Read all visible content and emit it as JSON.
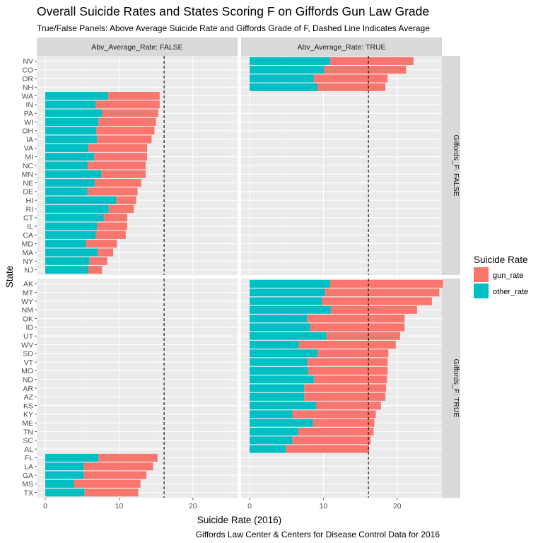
{
  "title": "Overall Suicide Rates and States Scoring F on Giffords Gun Law Grade",
  "subtitle": "True/False Panels: Above Average Suicide Rate and Giffords Grade of F, Dashed Line Indicates Average",
  "caption": "Giffords Law Center & Centers for Disease Control Data for 2016",
  "chart_data": {
    "type": "bar",
    "orientation": "horizontal",
    "stacked": true,
    "xlabel": "Suicide Rate (2016)",
    "ylabel": "State",
    "xlim": [
      0,
      26
    ],
    "xticks": [
      0,
      10,
      20
    ],
    "grid": true,
    "average_line": 16.1,
    "colors": {
      "gun_rate": "#F8766D",
      "other_rate": "#00BFC4"
    },
    "legend": {
      "title": "Suicide Rate",
      "position": "right",
      "entries": [
        {
          "key": "gun_rate",
          "label": "gun_rate"
        },
        {
          "key": "other_rate",
          "label": "other_rate"
        }
      ]
    },
    "col_facet": {
      "variable": "Abv_Average_Rate",
      "strips": [
        "Abv_Average_Rate: FALSE",
        "Abv_Average_Rate: TRUE"
      ]
    },
    "row_facet": {
      "variable": "Giffords_F",
      "strips": [
        "Giffords_F: FALSE",
        "Giffords_F: TRUE"
      ]
    },
    "rows": [
      {
        "states": [
          "NV",
          "CO",
          "OR",
          "NH",
          "WA",
          "IN",
          "PA",
          "WI",
          "OH",
          "IA",
          "VA",
          "MI",
          "NC",
          "MN",
          "NE",
          "DE",
          "HI",
          "RI",
          "CT",
          "IL",
          "CA",
          "MD",
          "MA",
          "NY",
          "NJ"
        ],
        "panels": [
          {
            "col": "Abv_Average_Rate: FALSE",
            "bars": [
              {
                "state": "WA",
                "other_rate": 8.5,
                "gun_rate": 7.0
              },
              {
                "state": "IN",
                "other_rate": 6.8,
                "gun_rate": 8.7
              },
              {
                "state": "PA",
                "other_rate": 7.7,
                "gun_rate": 7.6
              },
              {
                "state": "WI",
                "other_rate": 7.2,
                "gun_rate": 7.8
              },
              {
                "state": "OH",
                "other_rate": 6.9,
                "gun_rate": 7.9
              },
              {
                "state": "IA",
                "other_rate": 7.0,
                "gun_rate": 7.4
              },
              {
                "state": "VA",
                "other_rate": 5.8,
                "gun_rate": 8.0
              },
              {
                "state": "MI",
                "other_rate": 6.6,
                "gun_rate": 7.2
              },
              {
                "state": "NC",
                "other_rate": 5.7,
                "gun_rate": 7.9
              },
              {
                "state": "MN",
                "other_rate": 7.6,
                "gun_rate": 6.0
              },
              {
                "state": "NE",
                "other_rate": 6.7,
                "gun_rate": 6.3
              },
              {
                "state": "DE",
                "other_rate": 5.7,
                "gun_rate": 6.8
              },
              {
                "state": "HI",
                "other_rate": 9.6,
                "gun_rate": 2.7
              },
              {
                "state": "RI",
                "other_rate": 8.6,
                "gun_rate": 3.4
              },
              {
                "state": "CT",
                "other_rate": 7.9,
                "gun_rate": 3.2
              },
              {
                "state": "IL",
                "other_rate": 7.0,
                "gun_rate": 4.1
              },
              {
                "state": "CA",
                "other_rate": 6.8,
                "gun_rate": 4.1
              },
              {
                "state": "MD",
                "other_rate": 5.5,
                "gun_rate": 4.2
              },
              {
                "state": "MA",
                "other_rate": 7.1,
                "gun_rate": 2.1
              },
              {
                "state": "NY",
                "other_rate": 6.0,
                "gun_rate": 2.4
              },
              {
                "state": "NJ",
                "other_rate": 5.8,
                "gun_rate": 1.9
              }
            ]
          },
          {
            "col": "Abv_Average_Rate: TRUE",
            "bars": [
              {
                "state": "NV",
                "other_rate": 10.9,
                "gun_rate": 11.3
              },
              {
                "state": "CO",
                "other_rate": 10.1,
                "gun_rate": 11.1
              },
              {
                "state": "OR",
                "other_rate": 8.7,
                "gun_rate": 10.0
              },
              {
                "state": "NH",
                "other_rate": 9.2,
                "gun_rate": 9.2
              }
            ]
          }
        ]
      },
      {
        "states": [
          "AK",
          "MT",
          "WY",
          "NM",
          "OK",
          "ID",
          "UT",
          "WV",
          "SD",
          "VT",
          "MO",
          "ND",
          "AR",
          "AZ",
          "KS",
          "KY",
          "ME",
          "TN",
          "SC",
          "AL",
          "FL",
          "LA",
          "GA",
          "MS",
          "TX"
        ],
        "panels": [
          {
            "col": "Abv_Average_Rate: FALSE",
            "bars": [
              {
                "state": "FL",
                "other_rate": 7.2,
                "gun_rate": 8.0
              },
              {
                "state": "LA",
                "other_rate": 5.2,
                "gun_rate": 9.4
              },
              {
                "state": "GA",
                "other_rate": 5.2,
                "gun_rate": 8.5
              },
              {
                "state": "MS",
                "other_rate": 3.9,
                "gun_rate": 9.0
              },
              {
                "state": "TX",
                "other_rate": 5.3,
                "gun_rate": 7.3
              }
            ]
          },
          {
            "col": "Abv_Average_Rate: TRUE",
            "bars": [
              {
                "state": "AK",
                "other_rate": 10.9,
                "gun_rate": 15.3
              },
              {
                "state": "MT",
                "other_rate": 10.2,
                "gun_rate": 15.5
              },
              {
                "state": "WY",
                "other_rate": 9.8,
                "gun_rate": 14.9
              },
              {
                "state": "NM",
                "other_rate": 11.0,
                "gun_rate": 11.7
              },
              {
                "state": "OK",
                "other_rate": 7.8,
                "gun_rate": 13.2
              },
              {
                "state": "ID",
                "other_rate": 8.2,
                "gun_rate": 12.8
              },
              {
                "state": "UT",
                "other_rate": 10.4,
                "gun_rate": 10.0
              },
              {
                "state": "WV",
                "other_rate": 6.7,
                "gun_rate": 13.1
              },
              {
                "state": "SD",
                "other_rate": 9.2,
                "gun_rate": 9.6
              },
              {
                "state": "VT",
                "other_rate": 7.8,
                "gun_rate": 10.9
              },
              {
                "state": "MO",
                "other_rate": 7.9,
                "gun_rate": 10.8
              },
              {
                "state": "ND",
                "other_rate": 8.7,
                "gun_rate": 9.9
              },
              {
                "state": "AR",
                "other_rate": 7.4,
                "gun_rate": 11.1
              },
              {
                "state": "AZ",
                "other_rate": 7.4,
                "gun_rate": 11.0
              },
              {
                "state": "KS",
                "other_rate": 9.0,
                "gun_rate": 8.8
              },
              {
                "state": "KY",
                "other_rate": 5.8,
                "gun_rate": 11.3
              },
              {
                "state": "ME",
                "other_rate": 8.6,
                "gun_rate": 8.3
              },
              {
                "state": "TN",
                "other_rate": 6.6,
                "gun_rate": 10.2
              },
              {
                "state": "SC",
                "other_rate": 5.8,
                "gun_rate": 10.6
              },
              {
                "state": "AL",
                "other_rate": 4.9,
                "gun_rate": 11.3
              }
            ]
          }
        ]
      }
    ]
  }
}
